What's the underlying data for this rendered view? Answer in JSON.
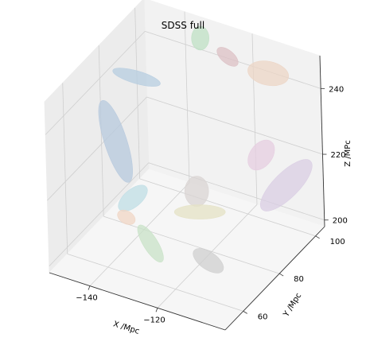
{
  "chart_data": {
    "type": "scatter",
    "projection": "3d",
    "title": "SDSS full",
    "xlabel": "X /Mpc",
    "ylabel": "Y /Mpc",
    "zlabel": "Z /MPc",
    "x_ticks": [
      -140,
      -120
    ],
    "y_ticks": [
      60,
      80,
      100
    ],
    "z_ticks": [
      200,
      220,
      240
    ],
    "xlim": [
      -152,
      -100
    ],
    "ylim": [
      50,
      105
    ],
    "zlim": [
      198,
      250
    ],
    "grid": true,
    "legend": "none",
    "series": [
      {
        "x": -145,
        "y": 75,
        "z": 226,
        "color": "#b7c9de"
      },
      {
        "x": -141,
        "y": 80,
        "z": 244,
        "color": "#b7cde0"
      },
      {
        "x": -130,
        "y": 95,
        "z": 251,
        "color": "#bfe0c4"
      },
      {
        "x": -122,
        "y": 95,
        "z": 248,
        "color": "#dcc0c4"
      },
      {
        "x": -110,
        "y": 95,
        "z": 247,
        "color": "#ecd5c5"
      },
      {
        "x": -110,
        "y": 90,
        "z": 225,
        "color": "#e5cde0"
      },
      {
        "x": -100,
        "y": 85,
        "z": 222,
        "color": "#d9cde3"
      },
      {
        "x": -124,
        "y": 80,
        "z": 215,
        "color": "#d9d4d3"
      },
      {
        "x": -121,
        "y": 76,
        "z": 212,
        "color": "#e4e2c4"
      },
      {
        "x": -142,
        "y": 78,
        "z": 208,
        "color": "#bfdde4"
      },
      {
        "x": -143,
        "y": 76,
        "z": 203,
        "color": "#f0d5c4"
      },
      {
        "x": -126,
        "y": 58,
        "z": 211,
        "color": "#c8e2c7"
      },
      {
        "x": -110,
        "y": 60,
        "z": 210,
        "color": "#cfcfcf"
      }
    ]
  }
}
